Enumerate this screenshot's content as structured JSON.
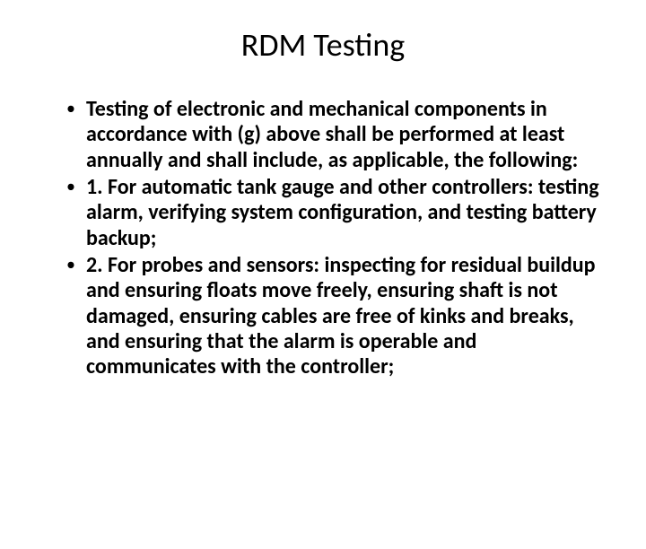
{
  "slide": {
    "title": "RDM Testing",
    "bullets": [
      "Testing of electronic and mechanical components in accordance with (g) above shall be performed at least annually and shall include, as applicable, the following:",
      "1. For automatic tank gauge and other controllers: testing alarm, verifying system configuration, and testing battery backup;",
      "2. For probes and sensors: inspecting for residual buildup and ensuring floats move freely, ensuring shaft is not damaged, ensuring cables are free of kinks and breaks, and ensuring that the alarm is operable and communicates with the controller;"
    ]
  },
  "style": {
    "background_color": "#ffffff",
    "text_color": "#000000",
    "title_fontsize": 36,
    "title_fontweight": "normal",
    "body_fontsize": 24,
    "body_fontweight": "bold",
    "font_family": "Calibri",
    "bullet_glyph": "•",
    "line_height": 1.18
  }
}
